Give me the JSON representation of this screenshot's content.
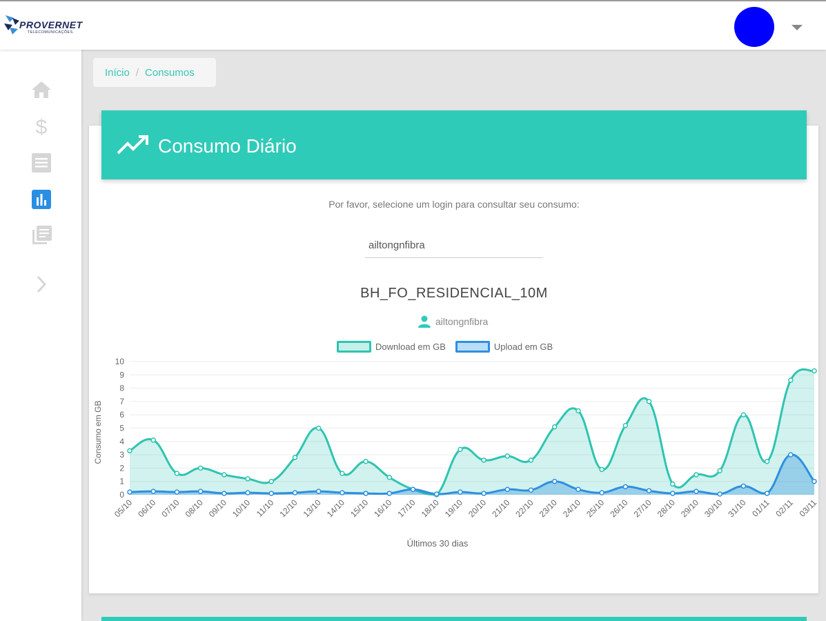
{
  "brand": {
    "name": "PROVERNET",
    "subtitle": "TELECOMUNICAÇÕES"
  },
  "header_user": {
    "avatar_color": "#0000ff"
  },
  "sidebar": {
    "items": [
      {
        "icon": "home-icon",
        "active": false
      },
      {
        "icon": "dollar-icon",
        "active": false
      },
      {
        "icon": "list-icon",
        "active": false
      },
      {
        "icon": "bar-chart-icon",
        "active": true
      },
      {
        "icon": "library-books-icon",
        "active": false
      },
      {
        "icon": "chevron-right-icon",
        "active": false
      }
    ]
  },
  "breadcrumb": {
    "home": "Início",
    "separator": "/",
    "current": "Consumos"
  },
  "card": {
    "title": "Consumo Diário",
    "prompt": "Por favor, selecione um login para consultar seu consumo:",
    "login_value": "ailtongnfibra",
    "plan_name": "BH_FO_RESIDENCIAL_10M",
    "plan_user": "ailtongnfibra"
  },
  "colors": {
    "accent": "#2ecbb8",
    "download": "#2ec4b0",
    "upload": "#2e8fe0",
    "link": "#38c6b5"
  },
  "chart_data": {
    "type": "area",
    "xlabel": "Últimos 30 dias",
    "ylabel": "Consumo em GB",
    "ylim": [
      0,
      10
    ],
    "yticks": [
      "0",
      "1",
      "2",
      "3",
      "4",
      "5",
      "6",
      "7",
      "8",
      "9",
      "10"
    ],
    "categories": [
      "05/10",
      "06/10",
      "07/10",
      "08/10",
      "09/10",
      "10/10",
      "11/10",
      "12/10",
      "13/10",
      "14/10",
      "15/10",
      "16/10",
      "17/10",
      "18/10",
      "19/10",
      "20/10",
      "21/10",
      "22/10",
      "23/10",
      "24/10",
      "25/10",
      "26/10",
      "27/10",
      "28/10",
      "29/10",
      "30/10",
      "31/10",
      "01/11",
      "02/11",
      "03/11"
    ],
    "series": [
      {
        "name": "Download em GB",
        "values": [
          3.3,
          4.1,
          1.6,
          2.0,
          1.5,
          1.2,
          1.0,
          2.8,
          5.0,
          1.6,
          2.5,
          1.3,
          0.4,
          0.0,
          3.4,
          2.6,
          2.9,
          2.6,
          5.1,
          6.3,
          1.9,
          5.2,
          7.0,
          0.8,
          1.5,
          1.8,
          6.0,
          2.5,
          8.6,
          9.3
        ]
      },
      {
        "name": "Upload em GB",
        "values": [
          0.2,
          0.25,
          0.2,
          0.25,
          0.1,
          0.15,
          0.1,
          0.15,
          0.25,
          0.15,
          0.1,
          0.1,
          0.4,
          0.05,
          0.2,
          0.1,
          0.4,
          0.35,
          1.0,
          0.4,
          0.15,
          0.6,
          0.3,
          0.1,
          0.25,
          0.05,
          0.65,
          0.1,
          3.0,
          1.0
        ]
      }
    ],
    "legend_position": "top",
    "grid": true
  }
}
